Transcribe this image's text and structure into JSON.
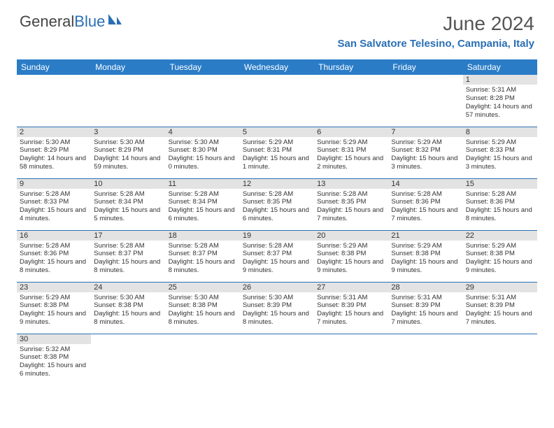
{
  "logo": {
    "text1": "General",
    "text2": "Blue"
  },
  "title": "June 2024",
  "location": "San Salvatore Telesino, Campania, Italy",
  "colors": {
    "header_bg": "#2a7cc7",
    "header_text": "#ffffff",
    "accent": "#2a6fb5",
    "daynum_bg": "#e3e3e3",
    "body_text": "#333333",
    "title_text": "#555555"
  },
  "weekdays": [
    "Sunday",
    "Monday",
    "Tuesday",
    "Wednesday",
    "Thursday",
    "Friday",
    "Saturday"
  ],
  "days": {
    "1": {
      "sunrise": "5:31 AM",
      "sunset": "8:28 PM",
      "daylight": "14 hours and 57 minutes."
    },
    "2": {
      "sunrise": "5:30 AM",
      "sunset": "8:29 PM",
      "daylight": "14 hours and 58 minutes."
    },
    "3": {
      "sunrise": "5:30 AM",
      "sunset": "8:29 PM",
      "daylight": "14 hours and 59 minutes."
    },
    "4": {
      "sunrise": "5:30 AM",
      "sunset": "8:30 PM",
      "daylight": "15 hours and 0 minutes."
    },
    "5": {
      "sunrise": "5:29 AM",
      "sunset": "8:31 PM",
      "daylight": "15 hours and 1 minute."
    },
    "6": {
      "sunrise": "5:29 AM",
      "sunset": "8:31 PM",
      "daylight": "15 hours and 2 minutes."
    },
    "7": {
      "sunrise": "5:29 AM",
      "sunset": "8:32 PM",
      "daylight": "15 hours and 3 minutes."
    },
    "8": {
      "sunrise": "5:29 AM",
      "sunset": "8:33 PM",
      "daylight": "15 hours and 3 minutes."
    },
    "9": {
      "sunrise": "5:28 AM",
      "sunset": "8:33 PM",
      "daylight": "15 hours and 4 minutes."
    },
    "10": {
      "sunrise": "5:28 AM",
      "sunset": "8:34 PM",
      "daylight": "15 hours and 5 minutes."
    },
    "11": {
      "sunrise": "5:28 AM",
      "sunset": "8:34 PM",
      "daylight": "15 hours and 6 minutes."
    },
    "12": {
      "sunrise": "5:28 AM",
      "sunset": "8:35 PM",
      "daylight": "15 hours and 6 minutes."
    },
    "13": {
      "sunrise": "5:28 AM",
      "sunset": "8:35 PM",
      "daylight": "15 hours and 7 minutes."
    },
    "14": {
      "sunrise": "5:28 AM",
      "sunset": "8:36 PM",
      "daylight": "15 hours and 7 minutes."
    },
    "15": {
      "sunrise": "5:28 AM",
      "sunset": "8:36 PM",
      "daylight": "15 hours and 8 minutes."
    },
    "16": {
      "sunrise": "5:28 AM",
      "sunset": "8:36 PM",
      "daylight": "15 hours and 8 minutes."
    },
    "17": {
      "sunrise": "5:28 AM",
      "sunset": "8:37 PM",
      "daylight": "15 hours and 8 minutes."
    },
    "18": {
      "sunrise": "5:28 AM",
      "sunset": "8:37 PM",
      "daylight": "15 hours and 8 minutes."
    },
    "19": {
      "sunrise": "5:28 AM",
      "sunset": "8:37 PM",
      "daylight": "15 hours and 9 minutes."
    },
    "20": {
      "sunrise": "5:29 AM",
      "sunset": "8:38 PM",
      "daylight": "15 hours and 9 minutes."
    },
    "21": {
      "sunrise": "5:29 AM",
      "sunset": "8:38 PM",
      "daylight": "15 hours and 9 minutes."
    },
    "22": {
      "sunrise": "5:29 AM",
      "sunset": "8:38 PM",
      "daylight": "15 hours and 9 minutes."
    },
    "23": {
      "sunrise": "5:29 AM",
      "sunset": "8:38 PM",
      "daylight": "15 hours and 9 minutes."
    },
    "24": {
      "sunrise": "5:30 AM",
      "sunset": "8:38 PM",
      "daylight": "15 hours and 8 minutes."
    },
    "25": {
      "sunrise": "5:30 AM",
      "sunset": "8:38 PM",
      "daylight": "15 hours and 8 minutes."
    },
    "26": {
      "sunrise": "5:30 AM",
      "sunset": "8:39 PM",
      "daylight": "15 hours and 8 minutes."
    },
    "27": {
      "sunrise": "5:31 AM",
      "sunset": "8:39 PM",
      "daylight": "15 hours and 7 minutes."
    },
    "28": {
      "sunrise": "5:31 AM",
      "sunset": "8:39 PM",
      "daylight": "15 hours and 7 minutes."
    },
    "29": {
      "sunrise": "5:31 AM",
      "sunset": "8:39 PM",
      "daylight": "15 hours and 7 minutes."
    },
    "30": {
      "sunrise": "5:32 AM",
      "sunset": "8:38 PM",
      "daylight": "15 hours and 6 minutes."
    }
  },
  "grid": [
    [
      null,
      null,
      null,
      null,
      null,
      null,
      "1"
    ],
    [
      "2",
      "3",
      "4",
      "5",
      "6",
      "7",
      "8"
    ],
    [
      "9",
      "10",
      "11",
      "12",
      "13",
      "14",
      "15"
    ],
    [
      "16",
      "17",
      "18",
      "19",
      "20",
      "21",
      "22"
    ],
    [
      "23",
      "24",
      "25",
      "26",
      "27",
      "28",
      "29"
    ],
    [
      "30",
      null,
      null,
      null,
      null,
      null,
      null
    ]
  ],
  "labels": {
    "sunrise_prefix": "Sunrise: ",
    "sunset_prefix": "Sunset: ",
    "daylight_prefix": "Daylight: "
  }
}
